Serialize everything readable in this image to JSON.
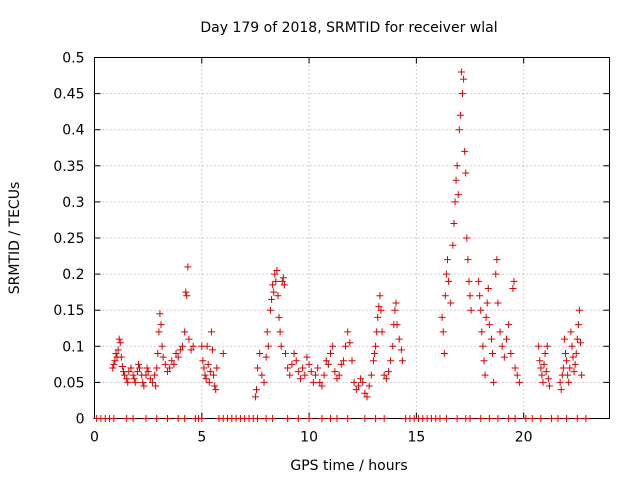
{
  "chart_data": {
    "type": "scatter",
    "title": "Day 179 of 2018, SRMTID for receiver wlal",
    "xlabel": "GPS time / hours",
    "ylabel": "SRMTID / TECUs",
    "xlim": [
      0,
      24
    ],
    "ylim": [
      0,
      0.5
    ],
    "xticks": [
      0,
      5,
      10,
      15,
      20
    ],
    "yticks": [
      0,
      0.05,
      0.1,
      0.15,
      0.2,
      0.25,
      0.3,
      0.35,
      0.4,
      0.45,
      0.5
    ],
    "xtick_labels": [
      "0",
      "5",
      "10",
      "15",
      "20"
    ],
    "ytick_labels": [
      "0",
      "0.05",
      "0.1",
      "0.15",
      "0.2",
      "0.25",
      "0.3",
      "0.35",
      "0.4",
      "0.45",
      "0.5"
    ],
    "grid": true,
    "marker": "+",
    "series": [
      {
        "name": "SRMTID",
        "color": "#dd0000",
        "points": [
          [
            0.1,
            0
          ],
          [
            0.3,
            0
          ],
          [
            0.5,
            0
          ],
          [
            0.7,
            0
          ],
          [
            0.9,
            0
          ],
          [
            1.5,
            0
          ],
          [
            1.8,
            0
          ],
          [
            2.4,
            0
          ],
          [
            2.9,
            0
          ],
          [
            3.4,
            0
          ],
          [
            3.9,
            0
          ],
          [
            4.2,
            0
          ],
          [
            4.7,
            0
          ],
          [
            4.85,
            0
          ],
          [
            5.0,
            0
          ],
          [
            5.8,
            0
          ],
          [
            6.0,
            0
          ],
          [
            6.2,
            0
          ],
          [
            6.4,
            0
          ],
          [
            6.6,
            0
          ],
          [
            6.8,
            0
          ],
          [
            7.0,
            0
          ],
          [
            7.2,
            0
          ],
          [
            7.4,
            0
          ],
          [
            7.6,
            0
          ],
          [
            8.0,
            0
          ],
          [
            8.3,
            0
          ],
          [
            9.0,
            0
          ],
          [
            9.5,
            0
          ],
          [
            10.0,
            0
          ],
          [
            10.6,
            0
          ],
          [
            11.0,
            0
          ],
          [
            11.3,
            0
          ],
          [
            11.8,
            0
          ],
          [
            12.6,
            0
          ],
          [
            13.1,
            0
          ],
          [
            13.5,
            0
          ],
          [
            14.5,
            0
          ],
          [
            14.7,
            0
          ],
          [
            14.9,
            0
          ],
          [
            15.1,
            0
          ],
          [
            15.3,
            0
          ],
          [
            15.5,
            0
          ],
          [
            15.7,
            0
          ],
          [
            15.9,
            0
          ],
          [
            16.1,
            0
          ],
          [
            16.4,
            0
          ],
          [
            16.9,
            0
          ],
          [
            17.3,
            0
          ],
          [
            17.5,
            0
          ],
          [
            18.0,
            0
          ],
          [
            18.4,
            0
          ],
          [
            18.8,
            0
          ],
          [
            19.3,
            0
          ],
          [
            19.6,
            0
          ],
          [
            20.1,
            0
          ],
          [
            20.4,
            0
          ],
          [
            20.8,
            0
          ],
          [
            21.3,
            0
          ],
          [
            21.6,
            0
          ],
          [
            22.0,
            0
          ],
          [
            22.5,
            0
          ],
          [
            22.9,
            0
          ],
          [
            0.85,
            0.07
          ],
          [
            0.9,
            0.075
          ],
          [
            0.95,
            0.08
          ],
          [
            1.0,
            0.09
          ],
          [
            1.05,
            0.085
          ],
          [
            1.1,
            0.095
          ],
          [
            1.15,
            0.11
          ],
          [
            1.2,
            0.105
          ],
          [
            1.25,
            0.085
          ],
          [
            1.3,
            0.072
          ],
          [
            1.35,
            0.065
          ],
          [
            1.4,
            0.06
          ],
          [
            1.5,
            0.055
          ],
          [
            1.55,
            0.05
          ],
          [
            1.6,
            0.065
          ],
          [
            1.7,
            0.07
          ],
          [
            1.8,
            0.06
          ],
          [
            1.85,
            0.055
          ],
          [
            1.9,
            0.05
          ],
          [
            2.0,
            0.065
          ],
          [
            2.05,
            0.075
          ],
          [
            2.1,
            0.07
          ],
          [
            2.2,
            0.06
          ],
          [
            2.25,
            0.05
          ],
          [
            2.3,
            0.045
          ],
          [
            2.4,
            0.06
          ],
          [
            2.45,
            0.07
          ],
          [
            2.5,
            0.065
          ],
          [
            2.6,
            0.055
          ],
          [
            2.7,
            0.05
          ],
          [
            2.8,
            0.06
          ],
          [
            2.85,
            0.045
          ],
          [
            2.9,
            0.07
          ],
          [
            2.95,
            0.09
          ],
          [
            3.0,
            0.12
          ],
          [
            3.05,
            0.145
          ],
          [
            3.1,
            0.13
          ],
          [
            3.15,
            0.1
          ],
          [
            3.2,
            0.085
          ],
          [
            3.3,
            0.075
          ],
          [
            3.4,
            0.065
          ],
          [
            3.5,
            0.07
          ],
          [
            3.6,
            0.08
          ],
          [
            3.7,
            0.075
          ],
          [
            3.8,
            0.09
          ],
          [
            3.9,
            0.085
          ],
          [
            4.0,
            0.095
          ],
          [
            4.1,
            0.1
          ],
          [
            4.2,
            0.12
          ],
          [
            4.25,
            0.175
          ],
          [
            4.3,
            0.17
          ],
          [
            4.35,
            0.21
          ],
          [
            4.4,
            0.11
          ],
          [
            4.5,
            0.095
          ],
          [
            4.6,
            0.1
          ],
          [
            5.0,
            0.1
          ],
          [
            5.05,
            0.08
          ],
          [
            5.1,
            0.07
          ],
          [
            5.15,
            0.06
          ],
          [
            5.2,
            0.055
          ],
          [
            5.25,
            0.1
          ],
          [
            5.3,
            0.075
          ],
          [
            5.35,
            0.05
          ],
          [
            5.4,
            0.065
          ],
          [
            5.45,
            0.12
          ],
          [
            5.5,
            0.095
          ],
          [
            5.55,
            0.06
          ],
          [
            5.6,
            0.045
          ],
          [
            5.65,
            0.04
          ],
          [
            5.7,
            0.07
          ],
          [
            6.0,
            0.09
          ],
          [
            7.5,
            0.03
          ],
          [
            7.55,
            0.04
          ],
          [
            7.6,
            0.07
          ],
          [
            7.7,
            0.09
          ],
          [
            7.8,
            0.06
          ],
          [
            7.9,
            0.05
          ],
          [
            8.0,
            0.085
          ],
          [
            8.05,
            0.12
          ],
          [
            8.1,
            0.1
          ],
          [
            8.2,
            0.15
          ],
          [
            8.25,
            0.165
          ],
          [
            8.3,
            0.185
          ],
          [
            8.35,
            0.175
          ],
          [
            8.4,
            0.2
          ],
          [
            8.45,
            0.19
          ],
          [
            8.5,
            0.205
          ],
          [
            8.55,
            0.17
          ],
          [
            8.6,
            0.14
          ],
          [
            8.65,
            0.12
          ],
          [
            8.7,
            0.1
          ],
          [
            8.75,
            0.19
          ],
          [
            8.8,
            0.195
          ],
          [
            8.85,
            0.185
          ],
          [
            8.9,
            0.09
          ],
          [
            9.0,
            0.07
          ],
          [
            9.1,
            0.06
          ],
          [
            9.2,
            0.075
          ],
          [
            9.3,
            0.09
          ],
          [
            9.4,
            0.08
          ],
          [
            9.5,
            0.065
          ],
          [
            9.6,
            0.055
          ],
          [
            9.7,
            0.07
          ],
          [
            9.8,
            0.06
          ],
          [
            9.9,
            0.085
          ],
          [
            10.0,
            0.075
          ],
          [
            10.1,
            0.065
          ],
          [
            10.2,
            0.05
          ],
          [
            10.3,
            0.06
          ],
          [
            10.4,
            0.07
          ],
          [
            10.5,
            0.05
          ],
          [
            10.6,
            0.045
          ],
          [
            10.7,
            0.06
          ],
          [
            10.8,
            0.08
          ],
          [
            10.9,
            0.075
          ],
          [
            11.0,
            0.09
          ],
          [
            11.1,
            0.1
          ],
          [
            11.2,
            0.065
          ],
          [
            11.3,
            0.055
          ],
          [
            11.4,
            0.06
          ],
          [
            11.5,
            0.075
          ],
          [
            11.6,
            0.08
          ],
          [
            11.7,
            0.1
          ],
          [
            11.8,
            0.12
          ],
          [
            11.9,
            0.105
          ],
          [
            12.0,
            0.08
          ],
          [
            12.1,
            0.05
          ],
          [
            12.2,
            0.04
          ],
          [
            12.3,
            0.045
          ],
          [
            12.4,
            0.055
          ],
          [
            12.5,
            0.05
          ],
          [
            12.6,
            0.035
          ],
          [
            12.7,
            0.03
          ],
          [
            12.8,
            0.045
          ],
          [
            12.9,
            0.06
          ],
          [
            13.0,
            0.08
          ],
          [
            13.05,
            0.09
          ],
          [
            13.1,
            0.1
          ],
          [
            13.15,
            0.12
          ],
          [
            13.2,
            0.14
          ],
          [
            13.25,
            0.155
          ],
          [
            13.3,
            0.17
          ],
          [
            13.35,
            0.15
          ],
          [
            13.4,
            0.12
          ],
          [
            13.5,
            0.06
          ],
          [
            13.6,
            0.055
          ],
          [
            13.7,
            0.065
          ],
          [
            13.8,
            0.08
          ],
          [
            13.9,
            0.1
          ],
          [
            13.95,
            0.13
          ],
          [
            14.0,
            0.15
          ],
          [
            14.05,
            0.16
          ],
          [
            14.1,
            0.13
          ],
          [
            14.2,
            0.11
          ],
          [
            14.3,
            0.095
          ],
          [
            14.35,
            0.08
          ],
          [
            16.2,
            0.14
          ],
          [
            16.25,
            0.12
          ],
          [
            16.3,
            0.09
          ],
          [
            16.35,
            0.17
          ],
          [
            16.4,
            0.2
          ],
          [
            16.45,
            0.22
          ],
          [
            16.5,
            0.19
          ],
          [
            16.6,
            0.16
          ],
          [
            16.7,
            0.24
          ],
          [
            16.75,
            0.27
          ],
          [
            16.8,
            0.3
          ],
          [
            16.85,
            0.33
          ],
          [
            16.9,
            0.35
          ],
          [
            16.95,
            0.31
          ],
          [
            17.0,
            0.4
          ],
          [
            17.05,
            0.42
          ],
          [
            17.1,
            0.48
          ],
          [
            17.15,
            0.45
          ],
          [
            17.2,
            0.47
          ],
          [
            17.25,
            0.37
          ],
          [
            17.3,
            0.34
          ],
          [
            17.35,
            0.25
          ],
          [
            17.4,
            0.22
          ],
          [
            17.45,
            0.19
          ],
          [
            17.5,
            0.17
          ],
          [
            17.55,
            0.15
          ],
          [
            17.9,
            0.19
          ],
          [
            17.95,
            0.17
          ],
          [
            18.0,
            0.15
          ],
          [
            18.05,
            0.12
          ],
          [
            18.1,
            0.1
          ],
          [
            18.15,
            0.08
          ],
          [
            18.2,
            0.06
          ],
          [
            18.25,
            0.14
          ],
          [
            18.3,
            0.16
          ],
          [
            18.35,
            0.18
          ],
          [
            18.4,
            0.13
          ],
          [
            18.5,
            0.11
          ],
          [
            18.55,
            0.09
          ],
          [
            18.6,
            0.05
          ],
          [
            18.7,
            0.2
          ],
          [
            18.75,
            0.22
          ],
          [
            18.8,
            0.16
          ],
          [
            18.9,
            0.12
          ],
          [
            19.0,
            0.1
          ],
          [
            19.1,
            0.085
          ],
          [
            19.2,
            0.11
          ],
          [
            19.3,
            0.13
          ],
          [
            19.4,
            0.09
          ],
          [
            19.5,
            0.18
          ],
          [
            19.55,
            0.19
          ],
          [
            19.6,
            0.07
          ],
          [
            19.7,
            0.06
          ],
          [
            19.8,
            0.05
          ],
          [
            20.7,
            0.1
          ],
          [
            20.75,
            0.08
          ],
          [
            20.8,
            0.07
          ],
          [
            20.85,
            0.06
          ],
          [
            20.9,
            0.05
          ],
          [
            20.95,
            0.075
          ],
          [
            21.0,
            0.09
          ],
          [
            21.05,
            0.065
          ],
          [
            21.1,
            0.1
          ],
          [
            21.15,
            0.055
          ],
          [
            21.2,
            0.045
          ],
          [
            21.7,
            0.05
          ],
          [
            21.75,
            0.04
          ],
          [
            21.8,
            0.06
          ],
          [
            21.85,
            0.07
          ],
          [
            21.9,
            0.11
          ],
          [
            21.95,
            0.09
          ],
          [
            22.0,
            0.08
          ],
          [
            22.05,
            0.06
          ],
          [
            22.1,
            0.05
          ],
          [
            22.15,
            0.07
          ],
          [
            22.2,
            0.12
          ],
          [
            22.25,
            0.1
          ],
          [
            22.3,
            0.085
          ],
          [
            22.35,
            0.065
          ],
          [
            22.4,
            0.075
          ],
          [
            22.45,
            0.09
          ],
          [
            22.5,
            0.11
          ],
          [
            22.55,
            0.13
          ],
          [
            22.6,
            0.15
          ],
          [
            22.65,
            0.105
          ],
          [
            22.7,
            0.06
          ]
        ]
      }
    ]
  }
}
